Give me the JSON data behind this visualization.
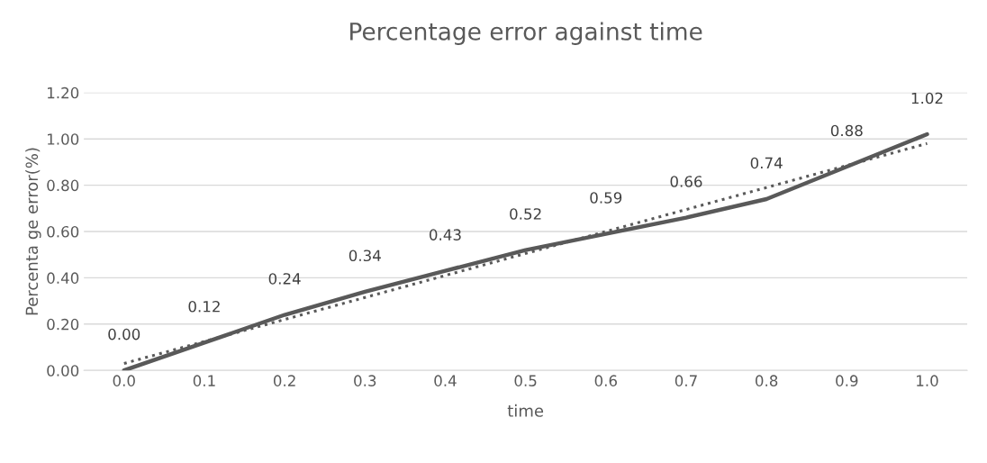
{
  "chart_data": {
    "type": "line",
    "title": "Percentage error against time",
    "xlabel": "time",
    "ylabel": "Percenta ge error(%)",
    "categories": [
      "0.0",
      "0.1",
      "0.2",
      "0.3",
      "0.4",
      "0.5",
      "0.6",
      "0.7",
      "0.8",
      "0.9",
      "1.0"
    ],
    "series": [
      {
        "color": "#595959",
        "values": [
          0.0,
          0.12,
          0.24,
          0.34,
          0.43,
          0.52,
          0.59,
          0.66,
          0.74,
          0.88,
          1.02
        ],
        "value_labels": [
          "0.00",
          "0.12",
          "0.24",
          "0.34",
          "0.43",
          "0.52",
          "0.59",
          "0.66",
          "0.74",
          "0.88",
          "1.02"
        ],
        "line_style": "solid"
      },
      {
        "type": "line",
        "color": "#595959",
        "x": [
          "0.0",
          "1.0"
        ],
        "values": [
          0.03,
          0.98
        ],
        "line_style": "dotted"
      }
    ],
    "ylim": [
      0,
      1.2
    ],
    "yticks": [
      {
        "value": 0,
        "label": "0.00"
      },
      {
        "value": 0.2,
        "label": "0.20"
      },
      {
        "value": 0.4,
        "label": "0.40"
      },
      {
        "value": 0.6,
        "label": "0.60"
      },
      {
        "value": 0.8,
        "label": "0.80"
      },
      {
        "value": 1.0,
        "label": "1.00"
      },
      {
        "value": 1.2,
        "label": "1.20"
      }
    ],
    "grid": "y",
    "legend": false,
    "marker": "none"
  }
}
